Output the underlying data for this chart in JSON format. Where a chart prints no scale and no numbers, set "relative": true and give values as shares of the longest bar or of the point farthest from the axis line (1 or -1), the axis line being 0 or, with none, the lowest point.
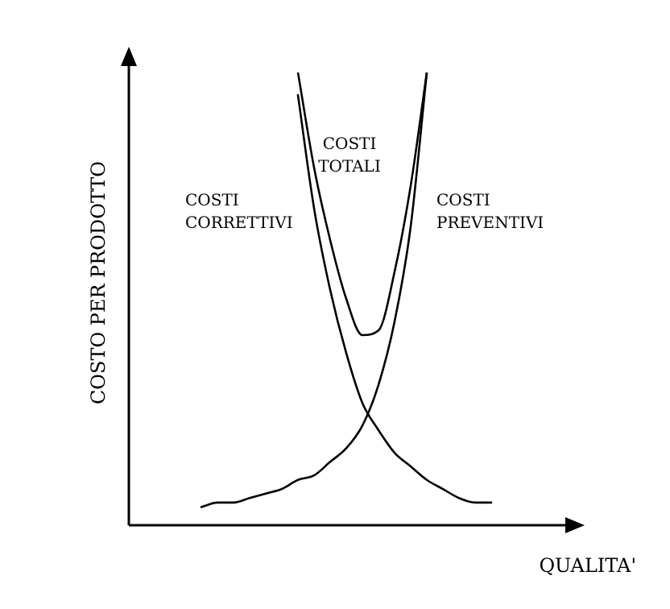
{
  "chart_data": {
    "type": "line",
    "relative": true,
    "xlabel": "QUALITA'",
    "ylabel": "COSTO PER PRODOTTO",
    "legend": false,
    "marker": "none",
    "tick_labels": false,
    "categories": [
      null,
      null,
      null,
      null,
      null,
      null,
      null,
      null,
      null,
      null,
      null,
      null,
      null,
      null,
      null,
      null,
      null,
      null,
      null,
      null,
      null,
      null,
      null,
      null,
      null,
      null,
      null,
      null,
      null
    ],
    "series": [
      {
        "name": "COSTI CORRETTIVI",
        "color": "#000000",
        "values": [
          null,
          null,
          null,
          null,
          null,
          null,
          null,
          null,
          null,
          null,
          null,
          0.95,
          0.7,
          0.52,
          0.38,
          0.27,
          0.21,
          0.16,
          0.13,
          0.1,
          0.08,
          0.06,
          0.05,
          0.05,
          null,
          null,
          null,
          null,
          null
        ]
      },
      {
        "name": "COSTI TOTALI",
        "color": "#000000",
        "values": [
          null,
          null,
          null,
          null,
          null,
          null,
          null,
          null,
          null,
          null,
          null,
          1.0,
          0.79,
          0.63,
          0.5,
          0.42,
          0.43,
          0.56,
          0.75,
          1.0,
          null,
          null,
          null,
          null,
          null,
          null,
          null,
          null,
          null
        ]
      },
      {
        "name": "COSTI PREVENTIVI",
        "color": "#000000",
        "values": [
          null,
          null,
          null,
          null,
          null,
          0.04,
          0.05,
          0.05,
          0.06,
          0.07,
          0.08,
          0.1,
          0.11,
          0.14,
          0.17,
          0.22,
          0.31,
          0.45,
          0.66,
          1.0,
          null,
          null,
          null,
          null,
          null,
          null,
          null,
          null,
          null
        ]
      }
    ]
  }
}
